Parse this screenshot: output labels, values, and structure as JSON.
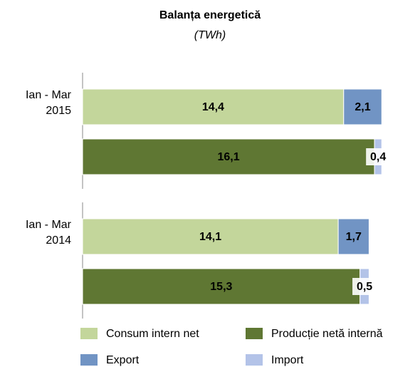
{
  "chart_data": {
    "type": "stacked-bar-horizontal",
    "title": "Balanța energetică",
    "subtitle": "(TWh)",
    "categories": [
      "Ian - Mar 2015",
      null,
      "Ian - Mar 2014",
      null
    ],
    "xlim": [
      0,
      17
    ],
    "series": [
      {
        "name": "Consum intern net",
        "color": "#c3d69b",
        "values": [
          14.4,
          null,
          14.1,
          null
        ],
        "value_labels": [
          "14,4",
          null,
          "14,1",
          null
        ]
      },
      {
        "name": "Export",
        "color": "#7194c4",
        "values": [
          2.1,
          null,
          1.7,
          null
        ],
        "value_labels": [
          "2,1",
          null,
          "1,7",
          null
        ]
      },
      {
        "name": "Producție netă internă",
        "color": "#5f7733",
        "values": [
          null,
          16.1,
          null,
          15.3
        ],
        "value_labels": [
          null,
          "16,1",
          null,
          "15,3"
        ]
      },
      {
        "name": "Import",
        "color": "#b3c3e8",
        "values": [
          null,
          0.4,
          null,
          0.5
        ],
        "value_labels": [
          null,
          "0,4",
          null,
          "0,5"
        ]
      }
    ]
  }
}
